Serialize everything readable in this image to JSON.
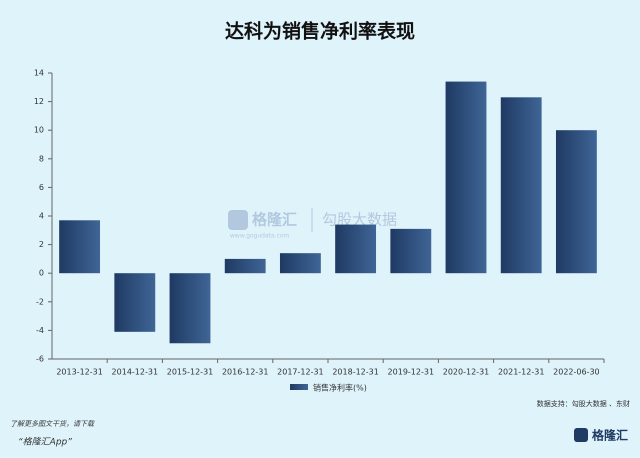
{
  "chart_data": {
    "type": "bar",
    "title": "达科为销售净利率表现",
    "categories": [
      "2013-12-31",
      "2014-12-31",
      "2015-12-31",
      "2016-12-31",
      "2017-12-31",
      "2018-12-31",
      "2019-12-31",
      "2020-12-31",
      "2021-12-31",
      "2022-06-30"
    ],
    "series": [
      {
        "name": "销售净利率(%)",
        "color": "#1f3a63",
        "values": [
          3.7,
          -4.1,
          -4.9,
          1.0,
          1.4,
          3.4,
          3.1,
          13.4,
          12.3,
          10.0
        ]
      }
    ],
    "ylim": [
      -6,
      14
    ],
    "yticks": [
      -6,
      -4,
      -2,
      0,
      2,
      4,
      6,
      8,
      10,
      12,
      14
    ],
    "grid": false,
    "source": "数据支持：勾股大数据 、东财"
  },
  "watermark": {
    "brand": "格隆汇",
    "sub": "勾股大数据",
    "url": "www.gogudata.com"
  },
  "footer": {
    "line1": "了解更多图文干货，请下载",
    "line2": "“格隆汇App”",
    "logo": "格隆汇"
  }
}
